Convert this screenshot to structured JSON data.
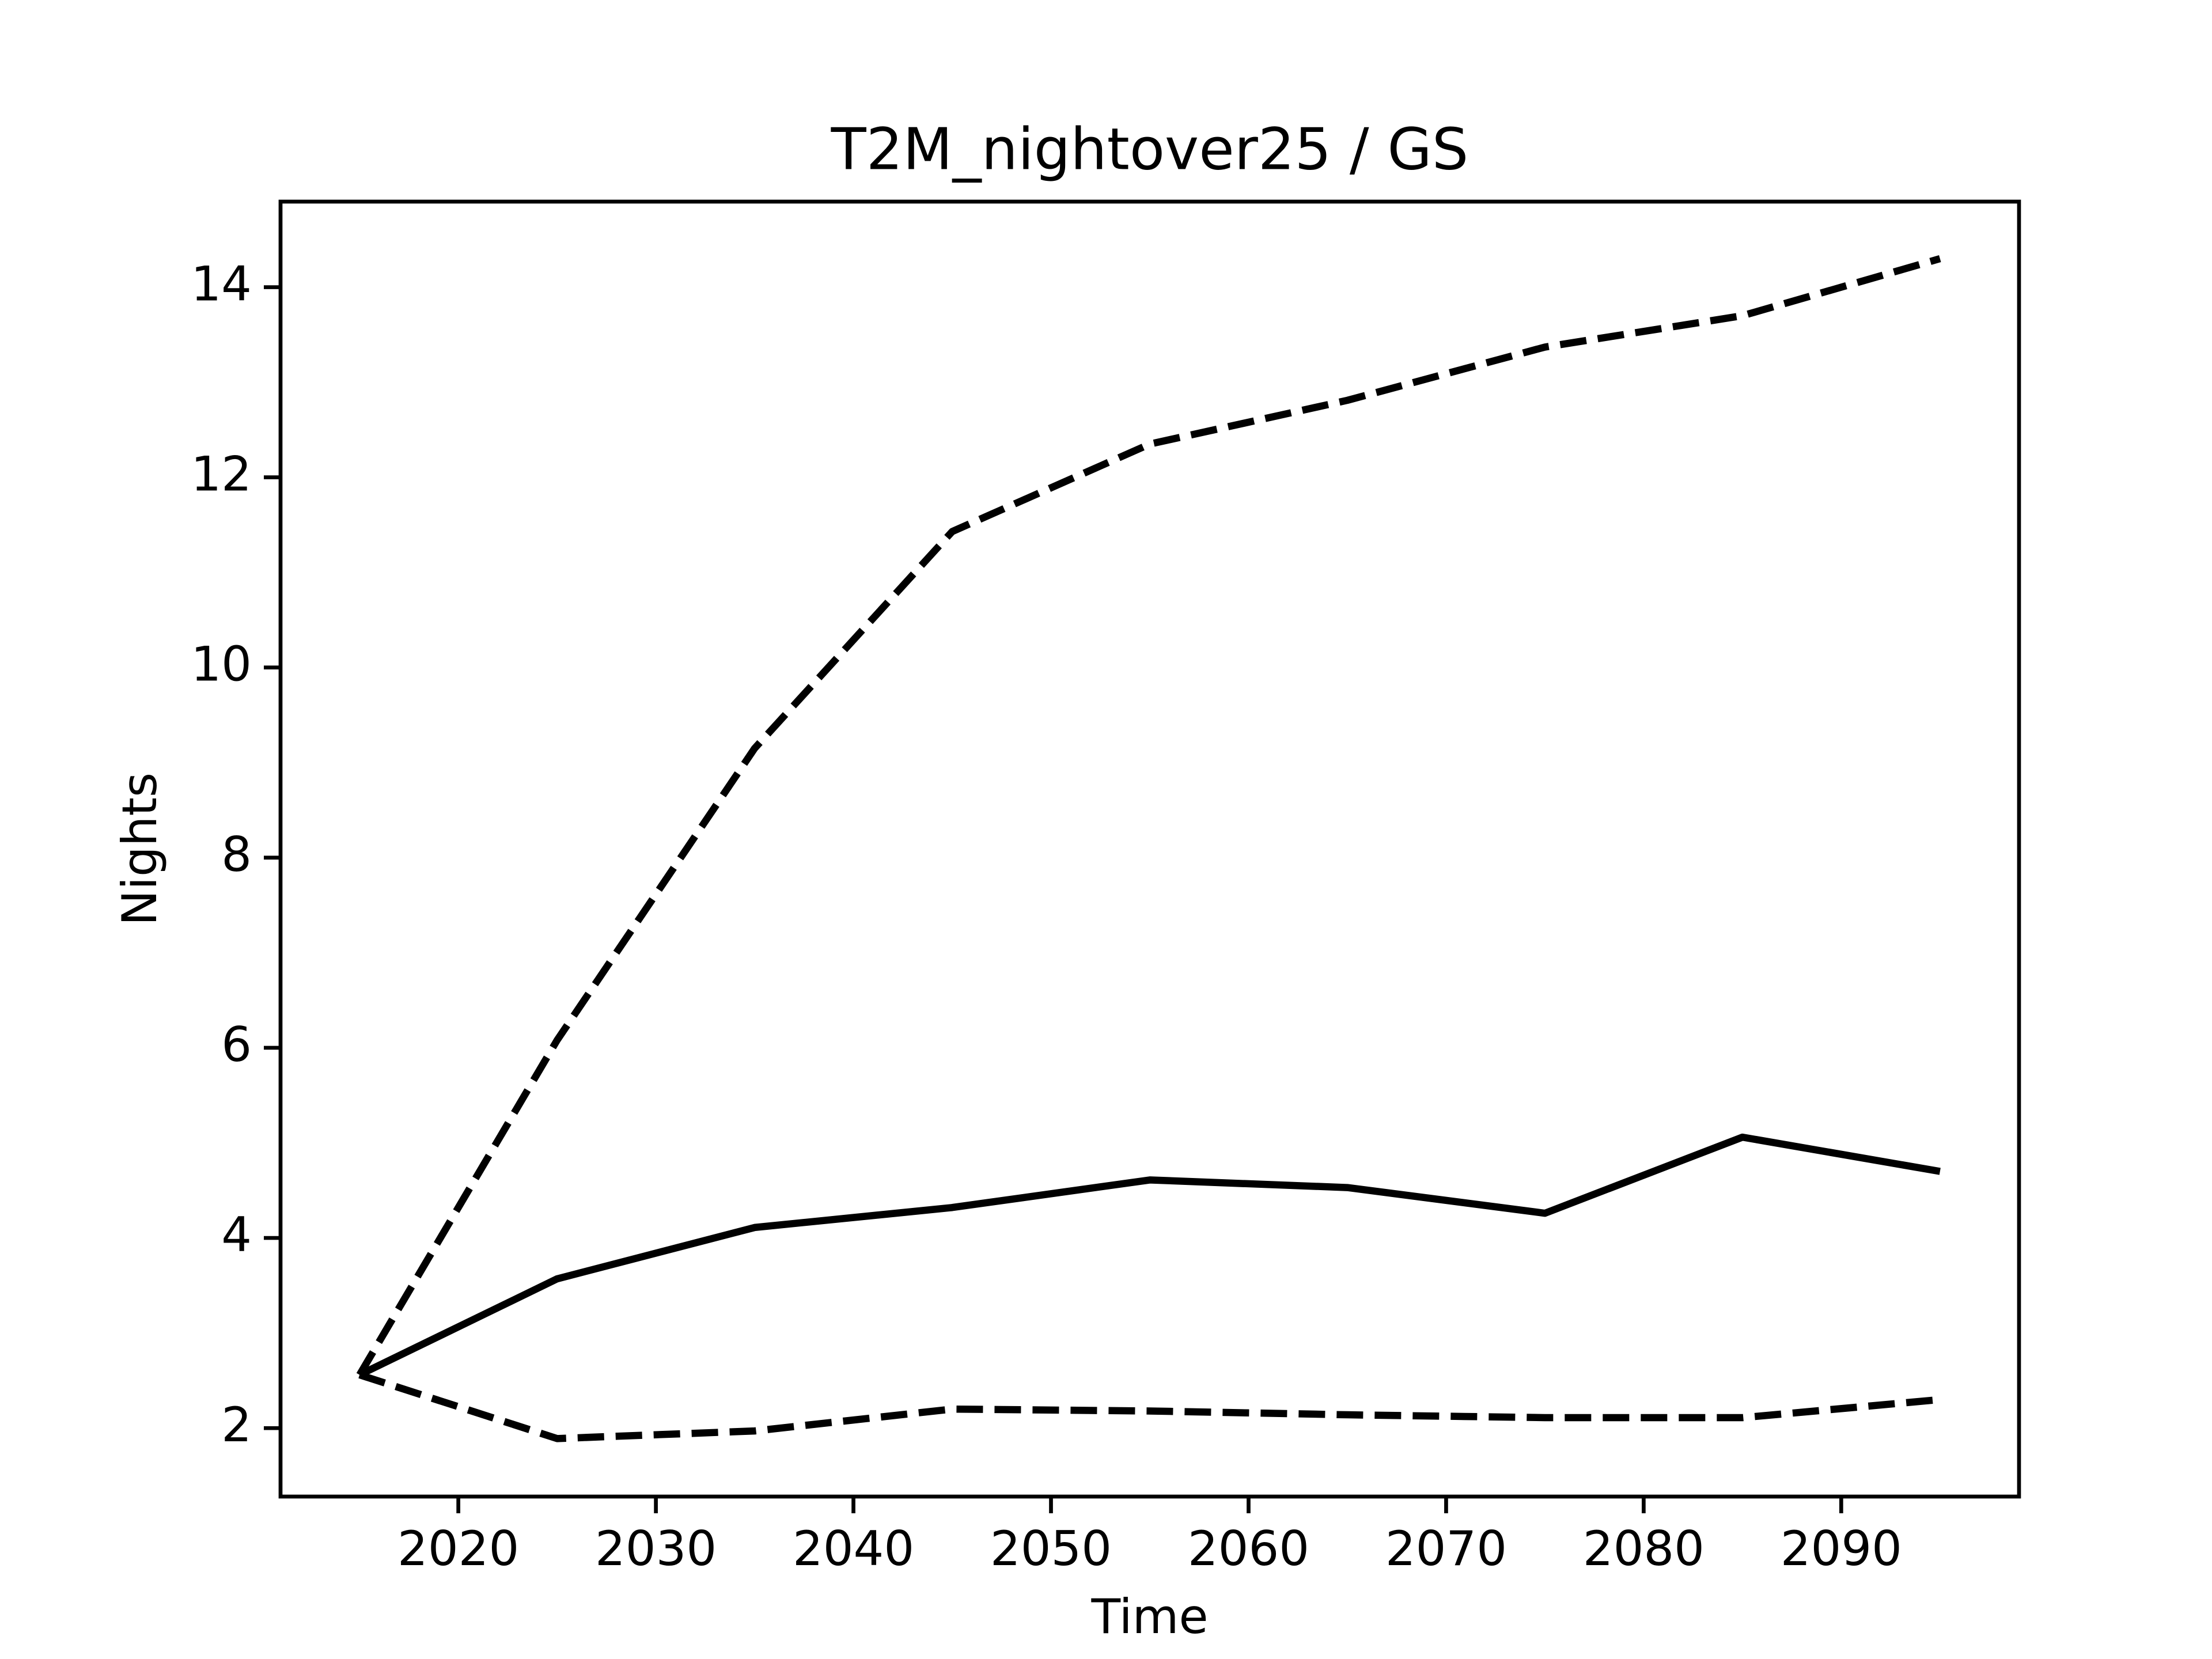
{
  "chart_data": {
    "type": "line",
    "title": "T2M_nightover25 / GS",
    "x_label": "Time",
    "y_label": "Nights",
    "x": [
      2015,
      2025,
      2035,
      2045,
      2055,
      2065,
      2075,
      2085,
      2095
    ],
    "series": [
      {
        "color": "#000000",
        "linestyle": "solid",
        "values": [
          2.56,
          3.57,
          4.11,
          4.32,
          4.61,
          4.53,
          4.26,
          5.06,
          4.7
        ]
      },
      {
        "color": "#000000",
        "linestyle": "dashed",
        "values": [
          2.56,
          6.08,
          9.15,
          11.43,
          12.35,
          12.81,
          13.37,
          13.7,
          14.3
        ]
      },
      {
        "color": "#000000",
        "linestyle": "dashed",
        "values": [
          2.56,
          1.89,
          1.97,
          2.2,
          2.18,
          2.14,
          2.11,
          2.11,
          2.3
        ]
      }
    ],
    "xlim": [
      2011,
      2099
    ],
    "xticks": [
      2020,
      2030,
      2040,
      2050,
      2060,
      2070,
      2080,
      2090
    ],
    "ylim": [
      1.28,
      14.9
    ],
    "yticks": [
      2,
      4,
      6,
      8,
      10,
      12,
      14
    ],
    "grid": false
  }
}
